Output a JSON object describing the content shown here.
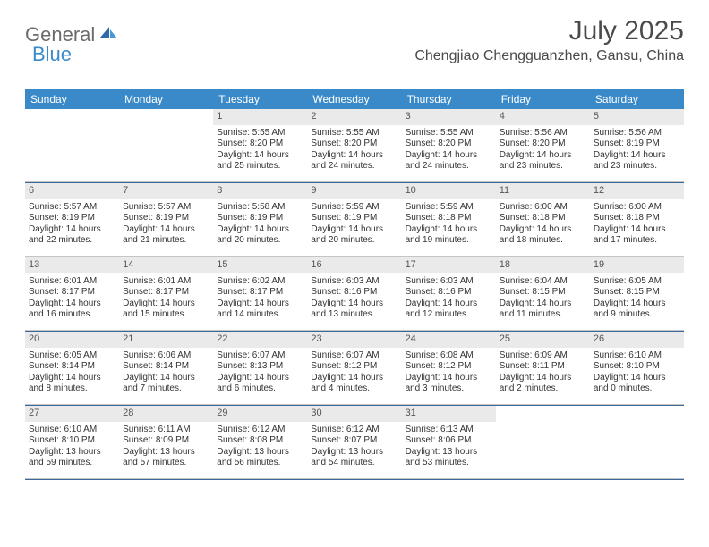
{
  "brand": {
    "part1": "General",
    "part2": "Blue"
  },
  "title": "July 2025",
  "location": "Chengjiao Chengguanzhen, Gansu, China",
  "colors": {
    "header_bg": "#3a8ac9",
    "week_divider": "#3a6a9a",
    "daynum_bg": "#eaeaea",
    "text": "#333333",
    "logo_gray": "#6b6b6b",
    "logo_blue": "#3a8ac9"
  },
  "day_labels": [
    "Sunday",
    "Monday",
    "Tuesday",
    "Wednesday",
    "Thursday",
    "Friday",
    "Saturday"
  ],
  "weeks": [
    [
      null,
      null,
      {
        "n": "1",
        "sr": "5:55 AM",
        "ss": "8:20 PM",
        "dl": "14 hours and 25 minutes."
      },
      {
        "n": "2",
        "sr": "5:55 AM",
        "ss": "8:20 PM",
        "dl": "14 hours and 24 minutes."
      },
      {
        "n": "3",
        "sr": "5:55 AM",
        "ss": "8:20 PM",
        "dl": "14 hours and 24 minutes."
      },
      {
        "n": "4",
        "sr": "5:56 AM",
        "ss": "8:20 PM",
        "dl": "14 hours and 23 minutes."
      },
      {
        "n": "5",
        "sr": "5:56 AM",
        "ss": "8:19 PM",
        "dl": "14 hours and 23 minutes."
      }
    ],
    [
      {
        "n": "6",
        "sr": "5:57 AM",
        "ss": "8:19 PM",
        "dl": "14 hours and 22 minutes."
      },
      {
        "n": "7",
        "sr": "5:57 AM",
        "ss": "8:19 PM",
        "dl": "14 hours and 21 minutes."
      },
      {
        "n": "8",
        "sr": "5:58 AM",
        "ss": "8:19 PM",
        "dl": "14 hours and 20 minutes."
      },
      {
        "n": "9",
        "sr": "5:59 AM",
        "ss": "8:19 PM",
        "dl": "14 hours and 20 minutes."
      },
      {
        "n": "10",
        "sr": "5:59 AM",
        "ss": "8:18 PM",
        "dl": "14 hours and 19 minutes."
      },
      {
        "n": "11",
        "sr": "6:00 AM",
        "ss": "8:18 PM",
        "dl": "14 hours and 18 minutes."
      },
      {
        "n": "12",
        "sr": "6:00 AM",
        "ss": "8:18 PM",
        "dl": "14 hours and 17 minutes."
      }
    ],
    [
      {
        "n": "13",
        "sr": "6:01 AM",
        "ss": "8:17 PM",
        "dl": "14 hours and 16 minutes."
      },
      {
        "n": "14",
        "sr": "6:01 AM",
        "ss": "8:17 PM",
        "dl": "14 hours and 15 minutes."
      },
      {
        "n": "15",
        "sr": "6:02 AM",
        "ss": "8:17 PM",
        "dl": "14 hours and 14 minutes."
      },
      {
        "n": "16",
        "sr": "6:03 AM",
        "ss": "8:16 PM",
        "dl": "14 hours and 13 minutes."
      },
      {
        "n": "17",
        "sr": "6:03 AM",
        "ss": "8:16 PM",
        "dl": "14 hours and 12 minutes."
      },
      {
        "n": "18",
        "sr": "6:04 AM",
        "ss": "8:15 PM",
        "dl": "14 hours and 11 minutes."
      },
      {
        "n": "19",
        "sr": "6:05 AM",
        "ss": "8:15 PM",
        "dl": "14 hours and 9 minutes."
      }
    ],
    [
      {
        "n": "20",
        "sr": "6:05 AM",
        "ss": "8:14 PM",
        "dl": "14 hours and 8 minutes."
      },
      {
        "n": "21",
        "sr": "6:06 AM",
        "ss": "8:14 PM",
        "dl": "14 hours and 7 minutes."
      },
      {
        "n": "22",
        "sr": "6:07 AM",
        "ss": "8:13 PM",
        "dl": "14 hours and 6 minutes."
      },
      {
        "n": "23",
        "sr": "6:07 AM",
        "ss": "8:12 PM",
        "dl": "14 hours and 4 minutes."
      },
      {
        "n": "24",
        "sr": "6:08 AM",
        "ss": "8:12 PM",
        "dl": "14 hours and 3 minutes."
      },
      {
        "n": "25",
        "sr": "6:09 AM",
        "ss": "8:11 PM",
        "dl": "14 hours and 2 minutes."
      },
      {
        "n": "26",
        "sr": "6:10 AM",
        "ss": "8:10 PM",
        "dl": "14 hours and 0 minutes."
      }
    ],
    [
      {
        "n": "27",
        "sr": "6:10 AM",
        "ss": "8:10 PM",
        "dl": "13 hours and 59 minutes."
      },
      {
        "n": "28",
        "sr": "6:11 AM",
        "ss": "8:09 PM",
        "dl": "13 hours and 57 minutes."
      },
      {
        "n": "29",
        "sr": "6:12 AM",
        "ss": "8:08 PM",
        "dl": "13 hours and 56 minutes."
      },
      {
        "n": "30",
        "sr": "6:12 AM",
        "ss": "8:07 PM",
        "dl": "13 hours and 54 minutes."
      },
      {
        "n": "31",
        "sr": "6:13 AM",
        "ss": "8:06 PM",
        "dl": "13 hours and 53 minutes."
      },
      null,
      null
    ]
  ],
  "labels": {
    "sunrise": "Sunrise:",
    "sunset": "Sunset:",
    "daylight": "Daylight:"
  }
}
